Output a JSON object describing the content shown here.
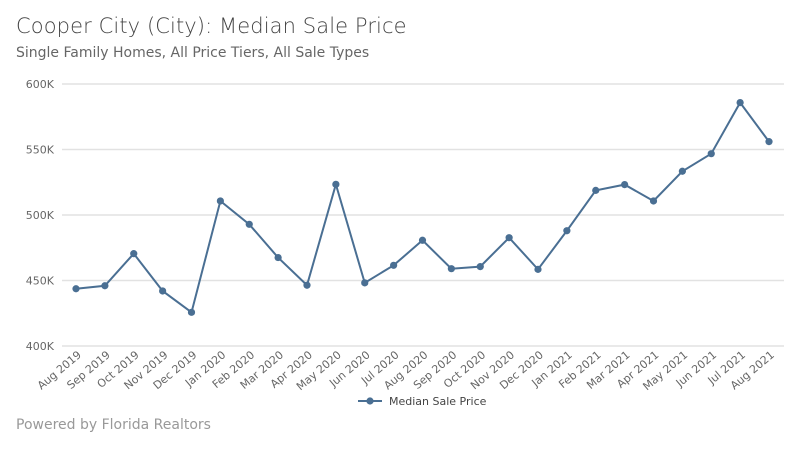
{
  "chart_data": {
    "type": "line",
    "title": "Cooper City (City): Median Sale Price",
    "subtitle": "Single Family Homes, All Price Tiers, All Sale Types",
    "xlabel": "",
    "ylabel": "",
    "categories": [
      "Aug 2019",
      "Sep 2019",
      "Oct 2019",
      "Nov 2019",
      "Dec 2019",
      "Jan 2020",
      "Feb 2020",
      "Mar 2020",
      "Apr 2020",
      "May 2020",
      "Jun 2020",
      "Jul 2020",
      "Aug 2020",
      "Sep 2020",
      "Oct 2020",
      "Nov 2020",
      "Dec 2020",
      "Jan 2021",
      "Feb 2021",
      "Mar 2021",
      "Apr 2021",
      "May 2021",
      "Jun 2021",
      "Jul 2021",
      "Aug 2021"
    ],
    "series": [
      {
        "name": "Median Sale Price",
        "values": [
          443700,
          446000,
          470500,
          442000,
          425700,
          510700,
          492900,
          467500,
          446400,
          523400,
          448200,
          461600,
          480700,
          459000,
          460600,
          482700,
          458500,
          488000,
          518800,
          523200,
          510700,
          533400,
          546800,
          585800,
          556000
        ]
      }
    ],
    "ylim": [
      400000,
      600000
    ],
    "yticks": [
      400000,
      450000,
      500000,
      550000,
      600000
    ],
    "ytick_labels": [
      "400K",
      "450K",
      "500K",
      "550K",
      "600K"
    ],
    "grid": true,
    "legend": "bottom",
    "color": "#4a6f93"
  },
  "footer": "Powered by Florida Realtors"
}
